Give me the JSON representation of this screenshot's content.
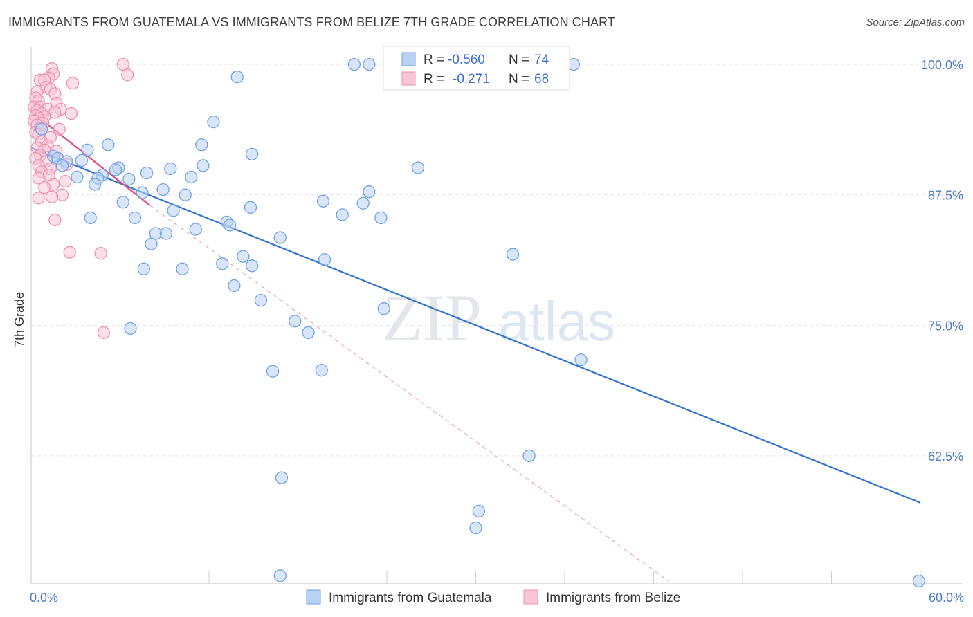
{
  "title": "IMMIGRANTS FROM GUATEMALA VS IMMIGRANTS FROM BELIZE 7TH GRADE CORRELATION CHART",
  "source": "Source: ZipAtlas.com",
  "watermark": {
    "zip": "ZIP",
    "atlas": "atlas"
  },
  "chart_data": {
    "type": "scatter",
    "xlabel": "",
    "ylabel": "7th Grade",
    "xlim": [
      0,
      60
    ],
    "ylim": [
      50.5,
      101
    ],
    "x_tick_labels": [
      "0.0%",
      "60.0%"
    ],
    "y_ticks": [
      62.5,
      75.0,
      87.5,
      100.0
    ],
    "y_tick_labels": [
      "62.5%",
      "75.0%",
      "87.5%",
      "100.0%"
    ],
    "legend": {
      "placement": "top-center",
      "rows": [
        {
          "r_label": "R =",
          "r_value": "-0.560",
          "n_label": "N =",
          "n_value": "74"
        },
        {
          "r_label": "R =",
          "r_value": "-0.271",
          "n_label": "N =",
          "n_value": "68"
        }
      ]
    },
    "series": [
      {
        "name": "Immigrants from Guatemala",
        "color": "#6fa1e6",
        "fill": "#b9d2f4",
        "line_color": "#3273cc",
        "trend": {
          "x": [
            0,
            60
          ],
          "y": [
            92.0,
            58.0
          ]
        },
        "points": [
          [
            21.8,
            100.0
          ],
          [
            22.8,
            100.0
          ],
          [
            36.6,
            100.0
          ],
          [
            13.9,
            98.8
          ],
          [
            12.3,
            94.5
          ],
          [
            0.7,
            93.8
          ],
          [
            11.5,
            92.3
          ],
          [
            5.2,
            92.3
          ],
          [
            3.8,
            91.8
          ],
          [
            14.9,
            91.4
          ],
          [
            1.5,
            91.2
          ],
          [
            1.8,
            91.0
          ],
          [
            3.4,
            90.8
          ],
          [
            2.4,
            90.7
          ],
          [
            2.1,
            90.3
          ],
          [
            11.6,
            90.3
          ],
          [
            5.9,
            90.1
          ],
          [
            26.1,
            90.1
          ],
          [
            9.4,
            90.0
          ],
          [
            5.7,
            89.9
          ],
          [
            7.8,
            89.6
          ],
          [
            4.8,
            89.4
          ],
          [
            3.1,
            89.2
          ],
          [
            10.8,
            89.2
          ],
          [
            4.5,
            89.1
          ],
          [
            6.6,
            89.0
          ],
          [
            4.3,
            88.5
          ],
          [
            8.9,
            88.0
          ],
          [
            22.8,
            87.8
          ],
          [
            7.5,
            87.7
          ],
          [
            10.4,
            87.5
          ],
          [
            19.7,
            86.9
          ],
          [
            6.2,
            86.8
          ],
          [
            22.4,
            86.7
          ],
          [
            14.8,
            86.3
          ],
          [
            9.6,
            86.0
          ],
          [
            21.0,
            85.6
          ],
          [
            4.0,
            85.3
          ],
          [
            7.0,
            85.3
          ],
          [
            23.6,
            85.3
          ],
          [
            13.2,
            84.9
          ],
          [
            13.4,
            84.6
          ],
          [
            11.1,
            84.2
          ],
          [
            8.4,
            83.8
          ],
          [
            9.1,
            83.8
          ],
          [
            16.8,
            83.4
          ],
          [
            8.1,
            82.8
          ],
          [
            32.5,
            81.8
          ],
          [
            14.3,
            81.6
          ],
          [
            19.8,
            81.3
          ],
          [
            12.9,
            80.9
          ],
          [
            14.9,
            80.7
          ],
          [
            7.6,
            80.4
          ],
          [
            10.2,
            80.4
          ],
          [
            13.7,
            78.8
          ],
          [
            15.5,
            77.4
          ],
          [
            23.8,
            76.6
          ],
          [
            17.8,
            75.4
          ],
          [
            6.7,
            74.7
          ],
          [
            18.7,
            74.3
          ],
          [
            37.1,
            71.7
          ],
          [
            16.3,
            70.6
          ],
          [
            19.6,
            70.7
          ],
          [
            33.6,
            62.5
          ],
          [
            16.9,
            60.4
          ],
          [
            30.2,
            57.2
          ],
          [
            30.0,
            55.6
          ],
          [
            16.8,
            51.0
          ],
          [
            59.9,
            50.5
          ]
        ]
      },
      {
        "name": "Immigrants from Belize",
        "color": "#ef8fb0",
        "fill": "#f8c6d7",
        "line_color": "#e0457a",
        "trend": {
          "x": [
            0,
            8
          ],
          "y": [
            95.5,
            86.5
          ]
        },
        "trend_extension": {
          "x": [
            8,
            43
          ],
          "y": [
            86.5,
            50.5
          ]
        },
        "points": [
          [
            6.2,
            100.0
          ],
          [
            1.4,
            99.6
          ],
          [
            1.5,
            99.1
          ],
          [
            6.5,
            99.0
          ],
          [
            1.2,
            98.7
          ],
          [
            0.6,
            98.5
          ],
          [
            0.9,
            98.5
          ],
          [
            2.8,
            98.2
          ],
          [
            1.0,
            97.8
          ],
          [
            1.3,
            97.6
          ],
          [
            0.4,
            97.4
          ],
          [
            1.6,
            97.2
          ],
          [
            0.3,
            96.8
          ],
          [
            0.5,
            96.5
          ],
          [
            1.7,
            96.3
          ],
          [
            0.2,
            95.9
          ],
          [
            0.6,
            95.9
          ],
          [
            1.1,
            95.7
          ],
          [
            2.0,
            95.7
          ],
          [
            0.4,
            95.6
          ],
          [
            1.6,
            95.4
          ],
          [
            0.7,
            95.3
          ],
          [
            2.7,
            95.3
          ],
          [
            0.3,
            95.1
          ],
          [
            0.9,
            95.0
          ],
          [
            0.5,
            94.8
          ],
          [
            0.2,
            94.6
          ],
          [
            0.8,
            94.4
          ],
          [
            0.4,
            94.2
          ],
          [
            0.6,
            93.9
          ],
          [
            1.9,
            93.8
          ],
          [
            0.3,
            93.5
          ],
          [
            0.5,
            93.3
          ],
          [
            1.3,
            93.0
          ],
          [
            0.7,
            92.6
          ],
          [
            1.1,
            92.2
          ],
          [
            0.4,
            92.0
          ],
          [
            0.9,
            91.8
          ],
          [
            1.7,
            91.7
          ],
          [
            0.6,
            91.3
          ],
          [
            0.3,
            91.0
          ],
          [
            1.0,
            90.7
          ],
          [
            2.4,
            90.4
          ],
          [
            0.5,
            90.3
          ],
          [
            1.3,
            90.0
          ],
          [
            0.7,
            89.7
          ],
          [
            1.2,
            89.4
          ],
          [
            0.5,
            89.1
          ],
          [
            2.3,
            88.8
          ],
          [
            1.5,
            88.5
          ],
          [
            0.9,
            88.2
          ],
          [
            2.1,
            87.5
          ],
          [
            1.4,
            87.3
          ],
          [
            0.5,
            87.2
          ],
          [
            1.6,
            85.1
          ],
          [
            2.6,
            82.0
          ],
          [
            4.7,
            81.9
          ],
          [
            4.9,
            74.3
          ]
        ]
      }
    ]
  }
}
